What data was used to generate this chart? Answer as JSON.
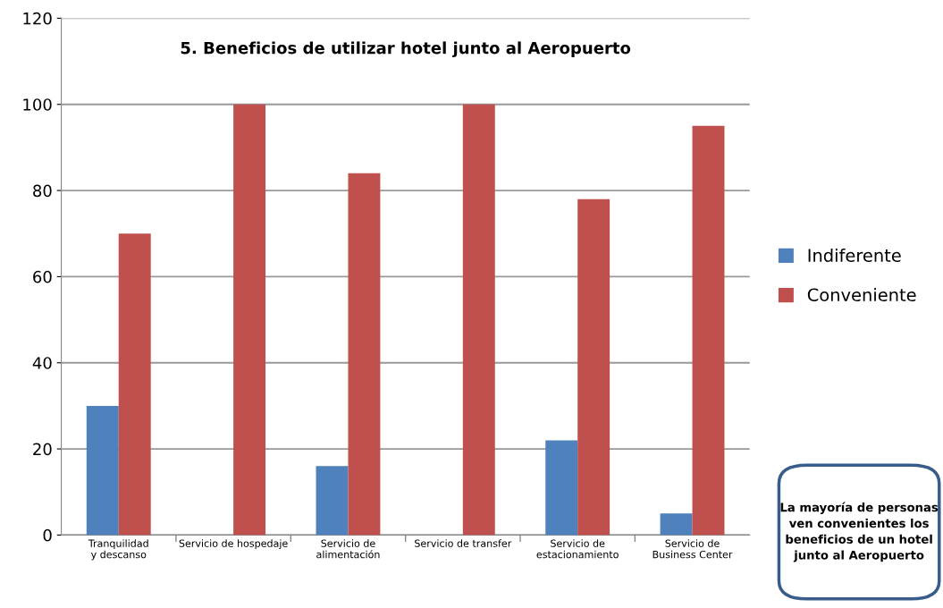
{
  "chart_data": {
    "type": "bar",
    "title": "5. Beneficios de utilizar hotel junto al Aeropuerto",
    "categories": [
      "Tranquilidad y descanso",
      "Servicio de hospedaje",
      "Servicio de alimentación",
      "Servicio de transfer",
      "Servicio de estacionamiento",
      "Servicio de Business Center"
    ],
    "series": [
      {
        "name": "Indiferente",
        "color": "#4f81bd",
        "values": [
          30,
          0,
          16,
          0,
          22,
          5
        ]
      },
      {
        "name": "Conveniente",
        "color": "#c0504d",
        "values": [
          70,
          100,
          84,
          100,
          78,
          95
        ]
      }
    ],
    "ylim": [
      0,
      120
    ],
    "yticks": [
      0,
      20,
      40,
      60,
      80,
      100,
      120
    ],
    "grid": "y",
    "legend": "right",
    "annotations": [
      "La mayoría de personas ven convenientes los beneficios de un hotel junto al Aeropuerto"
    ]
  }
}
